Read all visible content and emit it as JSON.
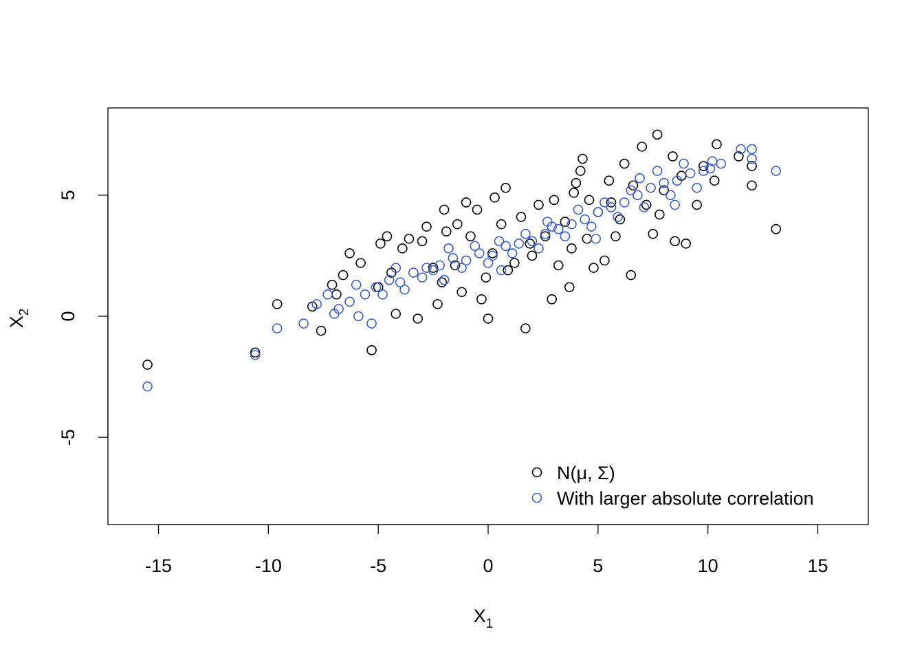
{
  "chart_data": {
    "type": "scatter",
    "title": "",
    "xlabel": {
      "base": "X",
      "sub": "1"
    },
    "ylabel": {
      "base": "X",
      "sub": "2"
    },
    "xlim": [
      -17.3,
      17.3
    ],
    "ylim": [
      -8.6,
      8.6
    ],
    "xticks": [
      -15,
      -10,
      -5,
      0,
      5,
      10,
      15
    ],
    "xtick_labels": [
      "-15",
      "-10",
      "-5",
      "0",
      "5",
      "10",
      "15"
    ],
    "yticks": [
      -5,
      0,
      5
    ],
    "ytick_labels": [
      "-5",
      "0",
      "5"
    ],
    "grid": false,
    "legend_position": "bottom-right",
    "series": [
      {
        "name": "N(μ, Σ)",
        "color": "#000000",
        "marker": "open-circle",
        "points": [
          [
            -15.5,
            -2.0
          ],
          [
            -10.6,
            -1.5
          ],
          [
            -9.6,
            0.5
          ],
          [
            -7.6,
            -0.6
          ],
          [
            -5.3,
            -1.4
          ],
          [
            -4.6,
            3.3
          ],
          [
            -3.6,
            3.2
          ],
          [
            -2.8,
            3.7
          ],
          [
            -2.0,
            4.4
          ],
          [
            -1.0,
            4.7
          ],
          [
            -0.5,
            4.4
          ],
          [
            0.3,
            4.9
          ],
          [
            0.8,
            5.3
          ],
          [
            -1.5,
            2.1
          ],
          [
            -0.3,
            0.7
          ],
          [
            0.0,
            -0.1
          ],
          [
            1.7,
            -0.5
          ],
          [
            3.7,
            1.2
          ],
          [
            3.9,
            5.1
          ],
          [
            4.0,
            5.5
          ],
          [
            4.2,
            6.0
          ],
          [
            4.3,
            6.5
          ],
          [
            5.5,
            5.6
          ],
          [
            6.2,
            6.3
          ],
          [
            7.0,
            7.0
          ],
          [
            7.7,
            7.5
          ],
          [
            8.4,
            6.6
          ],
          [
            10.4,
            7.1
          ],
          [
            11.4,
            6.6
          ],
          [
            12.0,
            6.2
          ],
          [
            12.0,
            5.4
          ],
          [
            13.1,
            3.6
          ],
          [
            9.0,
            3.0
          ],
          [
            8.5,
            3.1
          ],
          [
            6.5,
            1.7
          ],
          [
            5.3,
            2.3
          ],
          [
            4.8,
            2.0
          ],
          [
            2.9,
            0.7
          ],
          [
            -7.1,
            1.3
          ],
          [
            -6.3,
            2.6
          ],
          [
            -5.8,
            2.2
          ],
          [
            -4.2,
            0.1
          ],
          [
            -3.2,
            -0.1
          ],
          [
            -2.3,
            0.5
          ],
          [
            -1.9,
            3.5
          ],
          [
            -0.8,
            3.3
          ],
          [
            0.6,
            3.8
          ],
          [
            1.5,
            4.1
          ],
          [
            2.3,
            4.6
          ],
          [
            3.0,
            4.8
          ],
          [
            5.0,
            4.3
          ],
          [
            6.0,
            4.0
          ],
          [
            7.5,
            3.4
          ],
          [
            9.5,
            4.6
          ],
          [
            10.3,
            5.6
          ],
          [
            -8.0,
            0.4
          ],
          [
            -6.6,
            1.7
          ],
          [
            -5.0,
            1.2
          ],
          [
            -3.9,
            2.8
          ],
          [
            -2.5,
            2.0
          ],
          [
            -1.2,
            1.0
          ],
          [
            0.9,
            1.9
          ],
          [
            2.0,
            2.5
          ],
          [
            3.2,
            2.1
          ],
          [
            4.5,
            3.2
          ],
          [
            5.8,
            3.3
          ],
          [
            7.2,
            4.6
          ],
          [
            8.0,
            5.2
          ],
          [
            -4.9,
            3.0
          ],
          [
            -3.0,
            3.1
          ],
          [
            -1.4,
            3.8
          ],
          [
            0.2,
            2.6
          ],
          [
            1.2,
            2.2
          ],
          [
            2.6,
            3.3
          ],
          [
            3.5,
            3.9
          ],
          [
            4.6,
            4.8
          ],
          [
            6.6,
            5.4
          ],
          [
            8.8,
            5.8
          ],
          [
            -6.9,
            0.9
          ],
          [
            -4.4,
            1.8
          ],
          [
            -2.1,
            1.4
          ],
          [
            -0.1,
            1.6
          ],
          [
            1.9,
            3.0
          ],
          [
            3.8,
            2.8
          ],
          [
            5.6,
            4.7
          ],
          [
            7.8,
            4.2
          ],
          [
            9.8,
            6.2
          ]
        ]
      },
      {
        "name": "With larger absolute correlation",
        "color": "#3a5fcd",
        "marker": "open-circle",
        "points": [
          [
            -15.5,
            -2.9
          ],
          [
            -10.6,
            -1.6
          ],
          [
            -9.6,
            -0.5
          ],
          [
            -8.4,
            -0.3
          ],
          [
            -7.8,
            0.5
          ],
          [
            -7.0,
            0.1
          ],
          [
            -6.3,
            0.6
          ],
          [
            -5.6,
            0.9
          ],
          [
            -5.1,
            1.2
          ],
          [
            -4.5,
            1.5
          ],
          [
            -4.0,
            1.4
          ],
          [
            -3.4,
            1.8
          ],
          [
            -2.8,
            2.0
          ],
          [
            -2.2,
            2.1
          ],
          [
            -1.6,
            2.4
          ],
          [
            -1.0,
            2.3
          ],
          [
            -0.4,
            2.6
          ],
          [
            0.2,
            2.5
          ],
          [
            0.8,
            2.9
          ],
          [
            1.4,
            3.0
          ],
          [
            2.0,
            3.1
          ],
          [
            2.6,
            3.4
          ],
          [
            3.2,
            3.6
          ],
          [
            3.8,
            3.8
          ],
          [
            4.4,
            4.0
          ],
          [
            5.0,
            4.3
          ],
          [
            5.6,
            4.5
          ],
          [
            6.2,
            4.7
          ],
          [
            6.8,
            5.0
          ],
          [
            7.4,
            5.3
          ],
          [
            8.0,
            5.5
          ],
          [
            8.6,
            5.6
          ],
          [
            9.2,
            5.9
          ],
          [
            9.8,
            6.0
          ],
          [
            10.2,
            6.4
          ],
          [
            10.6,
            6.3
          ],
          [
            11.5,
            6.9
          ],
          [
            12.0,
            6.9
          ],
          [
            12.0,
            6.5
          ],
          [
            13.1,
            6.0
          ],
          [
            -6.8,
            0.3
          ],
          [
            -5.9,
            0.0
          ],
          [
            -5.3,
            -0.3
          ],
          [
            -4.8,
            0.9
          ],
          [
            -3.8,
            1.1
          ],
          [
            -3.0,
            1.6
          ],
          [
            -2.5,
            1.9
          ],
          [
            -1.8,
            2.8
          ],
          [
            -1.2,
            2.0
          ],
          [
            -0.6,
            2.9
          ],
          [
            0.0,
            2.2
          ],
          [
            0.5,
            3.1
          ],
          [
            1.1,
            2.6
          ],
          [
            1.7,
            3.4
          ],
          [
            2.3,
            2.8
          ],
          [
            2.9,
            3.7
          ],
          [
            3.5,
            3.3
          ],
          [
            4.1,
            4.4
          ],
          [
            4.7,
            3.7
          ],
          [
            5.3,
            4.7
          ],
          [
            5.9,
            4.1
          ],
          [
            6.5,
            5.2
          ],
          [
            7.1,
            4.5
          ],
          [
            7.7,
            6.0
          ],
          [
            8.3,
            5.0
          ],
          [
            8.9,
            6.3
          ],
          [
            9.5,
            5.3
          ],
          [
            10.1,
            6.1
          ],
          [
            -7.3,
            0.9
          ],
          [
            -6.0,
            1.3
          ],
          [
            -4.2,
            2.0
          ],
          [
            -2.0,
            1.5
          ],
          [
            0.6,
            1.9
          ],
          [
            2.7,
            3.9
          ],
          [
            4.9,
            3.2
          ],
          [
            6.9,
            5.7
          ],
          [
            8.5,
            4.6
          ]
        ]
      }
    ]
  }
}
